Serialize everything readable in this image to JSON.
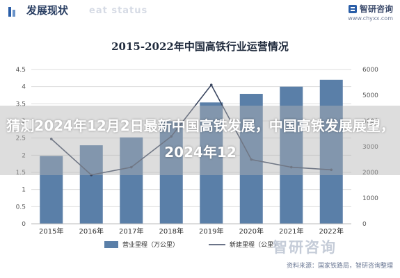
{
  "header": {
    "title": "发展现状",
    "subtitle": "eat status",
    "logo_name": "智研咨询",
    "logo_url": "www.chyxx.com"
  },
  "overlay_text": "猜测2024年12月2日最新中国高铁发展，中国高铁发展展望，2024年12",
  "footer": {
    "watermark": "智研咨询",
    "source": "资料来源：国家铁路局，智研咨询整理"
  },
  "colors": {
    "bar": "#5a7fa8",
    "line": "#3a4660",
    "axis_text": "#555555",
    "grid": "#dddddd"
  },
  "chart_data": {
    "type": "bar",
    "title": "2015-2022年中国高铁行业运营情况",
    "categories": [
      "2015年",
      "2016年",
      "2017年",
      "2018年",
      "2019年",
      "2020年",
      "2021年",
      "2022年"
    ],
    "series": [
      {
        "name": "营业里程（万公里）",
        "type": "bar",
        "axis": "left",
        "values": [
          1.98,
          2.29,
          2.52,
          2.99,
          3.54,
          3.79,
          4.0,
          4.2
        ]
      },
      {
        "name": "新建里程（公里）",
        "type": "line",
        "axis": "right",
        "values": [
          3300,
          1900,
          2200,
          3400,
          5400,
          2500,
          2200,
          2100
        ]
      }
    ],
    "y_left": {
      "range": [
        0,
        4.5
      ],
      "ticks": [
        "0",
        "0.5",
        "1",
        "1.5",
        "2",
        "2.5",
        "3",
        "3.5",
        "4",
        "4.5"
      ]
    },
    "y_right": {
      "range": [
        0,
        6000
      ],
      "ticks": [
        "0",
        "1000",
        "2000",
        "3000",
        "4000",
        "5000",
        "6000"
      ]
    },
    "grid": true,
    "legend": "bottom"
  }
}
